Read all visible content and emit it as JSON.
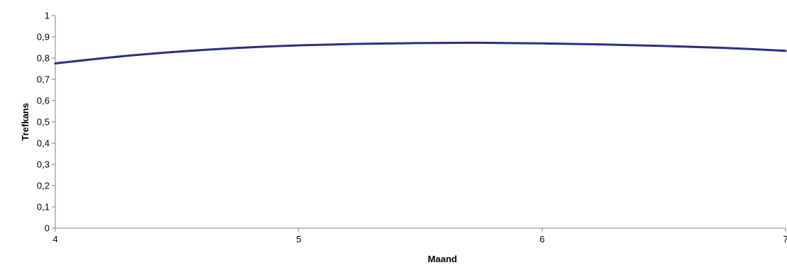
{
  "chart_data": {
    "type": "line",
    "title": "",
    "xlabel": "Maand",
    "ylabel": "Trefkans",
    "xlim": [
      4,
      7
    ],
    "ylim": [
      0,
      1
    ],
    "grid": false,
    "legend": "none",
    "x_ticks": [
      "4",
      "5",
      "6",
      "7"
    ],
    "y_ticks": [
      "0",
      "0,1",
      "0,2",
      "0,3",
      "0,4",
      "0,5",
      "0,6",
      "0,7",
      "0,8",
      "0,9",
      "1"
    ],
    "series": [
      {
        "color": "#2b2f80",
        "x": [
          4.0,
          4.25,
          4.5,
          4.75,
          5.0,
          5.25,
          5.5,
          5.75,
          6.0,
          6.25,
          6.5,
          6.75,
          7.0
        ],
        "y": [
          0.775,
          0.806,
          0.83,
          0.848,
          0.86,
          0.867,
          0.871,
          0.872,
          0.869,
          0.864,
          0.857,
          0.848,
          0.834
        ]
      }
    ]
  }
}
